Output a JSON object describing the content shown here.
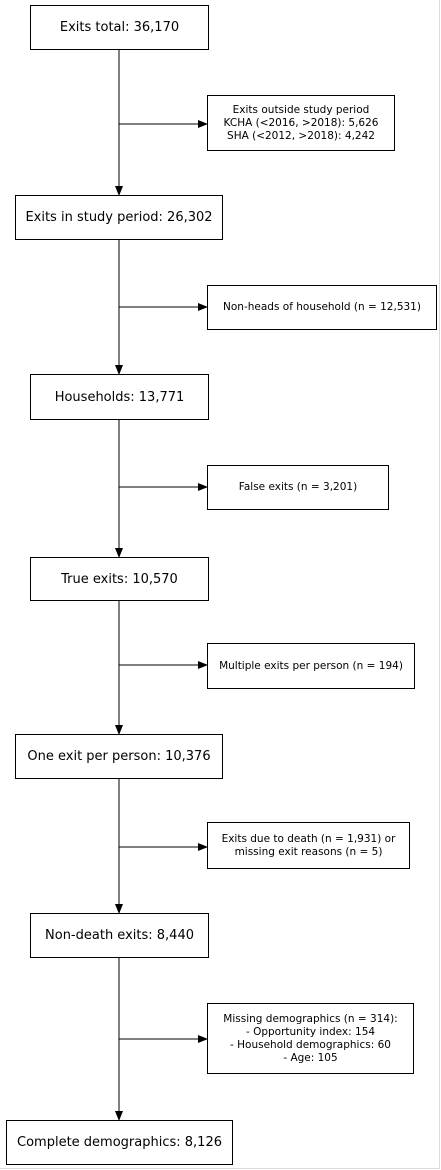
{
  "colors": {
    "line": "#000000",
    "box_border": "#000000",
    "background": "#ffffff",
    "text": "#000000"
  },
  "main_boxes": [
    "Exits total: 36,170",
    "Exits in study period: 26,302",
    "Households: 13,771",
    "True exits: 10,570",
    "One exit per person: 10,376",
    "Non-death exits: 8,440",
    "Complete demographics: 8,126"
  ],
  "side_boxes": [
    [
      "Exits outside study period",
      "KCHA (<2016, >2018): 5,626",
      "SHA (<2012, >2018): 4,242"
    ],
    [
      "Non-heads of household (n = 12,531)"
    ],
    [
      "False exits (n = 3,201)"
    ],
    [
      "Multiple exits per person (n = 194)"
    ],
    [
      "Exits due to death (n = 1,931) or",
      "missing exit reasons (n = 5)"
    ],
    [
      "Missing demographics (n = 314):",
      "- Opportunity index: 154",
      "- Household demographics: 60",
      "- Age: 105"
    ]
  ]
}
